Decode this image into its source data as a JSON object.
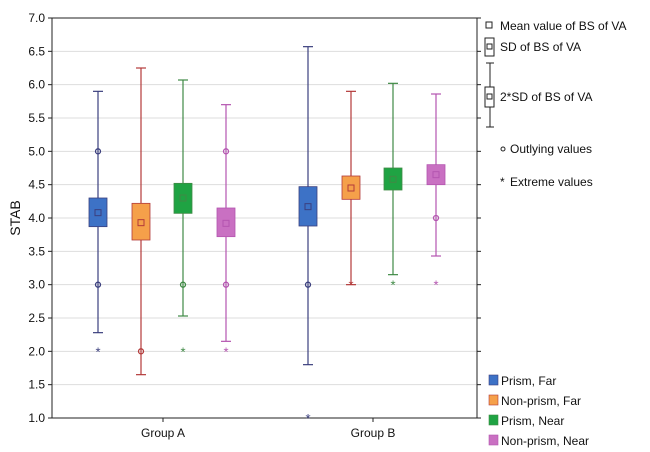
{
  "chart_data": {
    "type": "boxplot",
    "ylabel": "STAB",
    "ylim": [
      1.0,
      7.0
    ],
    "yticks": [
      "7.0",
      "6.5",
      "6.0",
      "5.5",
      "5.0",
      "4.5",
      "4.0",
      "3.5",
      "3.0",
      "2.5",
      "2.0",
      "1.5",
      "1.0"
    ],
    "grid": true,
    "categories": [
      "Group A",
      "Group B"
    ],
    "series": [
      {
        "name": "Prism, Far",
        "color": "#3d72c6",
        "line": "#3b3f7e",
        "data": [
          {
            "mean": 4.08,
            "box": [
              3.87,
              4.3
            ],
            "whisker": [
              2.28,
              5.9
            ],
            "outliers": [
              5.0,
              3.0
            ],
            "extremes": [
              2.0
            ]
          },
          {
            "mean": 4.17,
            "box": [
              3.88,
              4.47
            ],
            "whisker": [
              1.8,
              6.57
            ],
            "outliers": [
              3.0
            ],
            "extremes": [
              1.0
            ]
          }
        ]
      },
      {
        "name": "Non-prism, Far",
        "color": "#f5a04a",
        "line": "#b33a3a",
        "data": [
          {
            "mean": 3.93,
            "box": [
              3.67,
              4.22
            ],
            "whisker": [
              1.65,
              6.25
            ],
            "outliers": [
              2.0
            ],
            "extremes": []
          },
          {
            "mean": 4.45,
            "box": [
              4.28,
              4.63
            ],
            "whisker": [
              3.0,
              5.9
            ],
            "outliers": [],
            "extremes": [
              3.0
            ]
          }
        ]
      },
      {
        "name": "Prism, Near",
        "color": "#1fa343",
        "line": "#3f8a45",
        "data": [
          {
            "mean": 4.3,
            "box": [
              4.07,
              4.52
            ],
            "whisker": [
              2.53,
              6.07
            ],
            "outliers": [
              3.0
            ],
            "extremes": [
              2.0
            ]
          },
          {
            "mean": 4.58,
            "box": [
              4.42,
              4.75
            ],
            "whisker": [
              3.15,
              6.02
            ],
            "outliers": [],
            "extremes": [
              3.0
            ]
          }
        ]
      },
      {
        "name": "Non-prism, Near",
        "color": "#c970c2",
        "line": "#b455b0",
        "data": [
          {
            "mean": 3.92,
            "box": [
              3.72,
              4.15
            ],
            "whisker": [
              2.15,
              5.7
            ],
            "outliers": [
              5.0,
              3.0
            ],
            "extremes": [
              2.0
            ]
          },
          {
            "mean": 4.65,
            "box": [
              4.5,
              4.8
            ],
            "whisker": [
              3.43,
              5.86
            ],
            "outliers": [
              4.0
            ],
            "extremes": [
              3.0
            ]
          }
        ]
      }
    ],
    "key": {
      "mean": "Mean value of BS of  VA",
      "sd": "SD of BS of VA",
      "sd2": "2*SD of BS of VA",
      "outlying": "Outlying values",
      "extreme": "Extreme values"
    }
  }
}
